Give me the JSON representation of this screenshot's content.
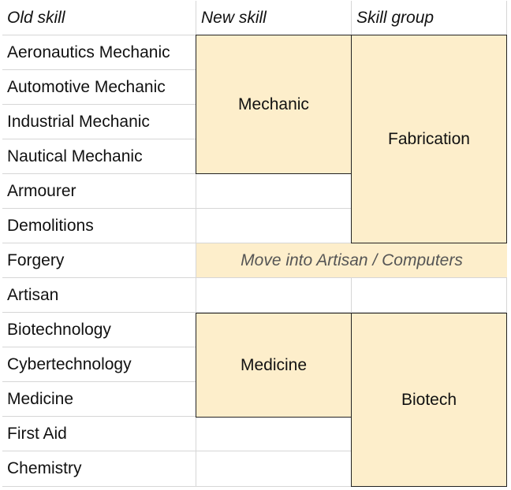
{
  "headers": [
    "Old skill",
    "New skill",
    "Skill group"
  ],
  "old_skills": [
    "Aeronautics Mechanic",
    "Automotive Mechanic",
    "Industrial Mechanic",
    "Nautical Mechanic",
    "Armourer",
    "Demolitions",
    "Forgery",
    "Artisan",
    "Biotechnology",
    "Cybertechnology",
    "Medicine",
    "First Aid",
    "Chemistry"
  ],
  "new_skill": {
    "mechanic": "Mechanic",
    "medicine": "Medicine"
  },
  "skill_group": {
    "fabrication": "Fabrication",
    "biotech": "Biotech"
  },
  "note": "Move into Artisan / Computers",
  "colors": {
    "highlight": "#fdeecb",
    "header_bg": "#f3f3f3",
    "grid_line": "#d6d6d6",
    "block_border": "#222222"
  }
}
